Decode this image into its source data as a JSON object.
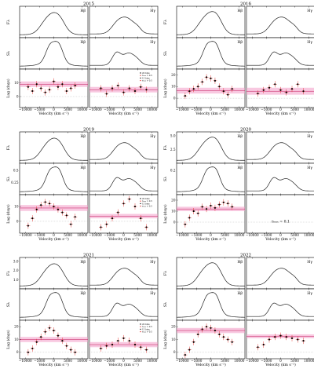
{
  "figure": {
    "panels": [
      {
        "year": "2015",
        "row": 0,
        "col": 0
      },
      {
        "year": "2016",
        "row": 0,
        "col": 1
      },
      {
        "year": "2019",
        "row": 1,
        "col": 0
      },
      {
        "year": "2020",
        "row": 1,
        "col": 1
      },
      {
        "year": "2021",
        "row": 2,
        "col": 0
      },
      {
        "year": "2022",
        "row": 2,
        "col": 1
      }
    ],
    "line_labels": [
      "Hβ",
      "Hγ"
    ],
    "row_labels": {
      "flux": "Fλ",
      "rms": "Sλ",
      "lag": "Lag (days)"
    },
    "xlabel": "Velocity (km s⁻¹)",
    "xticks": [
      "−10000",
      "−5000",
      "0",
      "5000",
      "10000"
    ],
    "legend": [
      "20 bins",
      "rₘₐₓ > 0.5",
      "15 bins",
      "rₘₐₓ > 0.5"
    ],
    "annotation_2020": "rₘₐₓ = 0.1"
  },
  "chart_data": [
    {
      "type": "line",
      "year": "2015",
      "panel": "flux/rms/lag",
      "xlabel": "Velocity (km s⁻¹)",
      "xlim": [
        -12000,
        12000
      ],
      "flux_yticks": [],
      "rms_yticks": [],
      "lag_yticks": [
        0,
        10
      ],
      "lag_ylim": [
        -8,
        20
      ],
      "hbeta_lag_band": [
        7,
        11
      ],
      "hgamma_lag_band": [
        3,
        7
      ],
      "hbeta_lags": {
        "x": [
          -9000,
          -7500,
          -6000,
          -4500,
          -3000,
          -1500,
          0,
          1500,
          3000,
          4500,
          6000,
          7500
        ],
        "y": [
          7,
          4,
          9,
          6,
          3,
          5,
          11,
          7,
          9,
          4,
          6,
          8
        ]
      },
      "hgamma_lags": {
        "x": [
          -8000,
          -6000,
          -4000,
          -2000,
          0,
          2000,
          4000,
          6000,
          8000
        ],
        "y": [
          6,
          2,
          6,
          8,
          3,
          6,
          4,
          7,
          5
        ]
      }
    },
    {
      "type": "line",
      "year": "2016",
      "panel": "flux/rms/lag",
      "xlabel": "Velocity (km s⁻¹)",
      "xlim": [
        -12000,
        12000
      ],
      "flux_yticks": [],
      "rms_yticks": [],
      "lag_yticks": [
        0,
        10,
        20
      ],
      "lag_ylim": [
        -8,
        25
      ],
      "hbeta_lag_band": [
        4,
        9
      ],
      "hgamma_lag_band": [
        3,
        9
      ],
      "hbeta_lags": {
        "x": [
          -9000,
          -7500,
          -6000,
          -4500,
          -3000,
          -1500,
          0,
          1500,
          3000,
          4500,
          6000,
          7500
        ],
        "y": [
          2,
          6,
          8,
          10,
          14,
          18,
          17,
          15,
          10,
          6,
          3,
          8
        ]
      },
      "hgamma_lags": {
        "x": [
          -8000,
          -6000,
          -4000,
          -2000,
          0,
          2000,
          4000,
          6000,
          8000
        ],
        "y": [
          4,
          7,
          9,
          12,
          7,
          5,
          8,
          12,
          6
        ]
      }
    },
    {
      "type": "line",
      "year": "2019",
      "panel": "flux/rms/lag",
      "xlabel": "Velocity (km s⁻¹)",
      "xlim": [
        -12000,
        12000
      ],
      "flux_yticks": [],
      "rms_yticks": [
        0.25,
        0.5
      ],
      "lag_yticks": [
        0,
        10
      ],
      "lag_ylim": [
        -8,
        18
      ],
      "hbeta_lag_band": [
        7,
        11
      ],
      "hgamma_lag_band": [
        2,
        5
      ],
      "hbeta_lags": {
        "x": [
          -9000,
          -7500,
          -6000,
          -4500,
          -3000,
          -1500,
          0,
          1500,
          3000,
          4500,
          6000,
          7500
        ],
        "y": [
          -3,
          2,
          8,
          11,
          13,
          12,
          10,
          8,
          6,
          4,
          -2,
          3
        ]
      },
      "hgamma_lags": {
        "x": [
          -8000,
          -6000,
          -4000,
          -2000,
          0,
          2000,
          4000,
          6000,
          8000
        ],
        "y": [
          -4,
          -2,
          2,
          6,
          12,
          15,
          10,
          2,
          -4
        ]
      }
    },
    {
      "type": "line",
      "year": "2020",
      "panel": "flux/rms/lag",
      "xlabel": "Velocity (km s⁻¹)",
      "xlim": [
        -12000,
        12000
      ],
      "flux_yticks": [
        2.5,
        5.0
      ],
      "rms_yticks": [
        0.2
      ],
      "lag_yticks": [
        0,
        10,
        20
      ],
      "lag_ylim": [
        -10,
        25
      ],
      "hbeta_lag_band": [
        10,
        14
      ],
      "hgamma_lag_band": [],
      "hbeta_lags": {
        "x": [
          -9000,
          -7500,
          -6000,
          -4500,
          -3000,
          -1500,
          0,
          1500,
          3000,
          4500,
          6000,
          7500
        ],
        "y": [
          -2,
          4,
          10,
          8,
          14,
          12,
          15,
          13,
          16,
          18,
          17,
          14
        ]
      },
      "hgamma_lags": {
        "x": [],
        "y": []
      }
    },
    {
      "type": "line",
      "year": "2021",
      "panel": "flux/rms/lag",
      "xlabel": "Velocity (km s⁻¹)",
      "xlim": [
        -12000,
        12000
      ],
      "flux_yticks": [
        1.0,
        2.0,
        3.0
      ],
      "rms_yticks": [],
      "lag_yticks": [
        0,
        10,
        20
      ],
      "lag_ylim": [
        -5,
        25
      ],
      "hbeta_lag_band": [
        8,
        12
      ],
      "hgamma_lag_band": [
        4,
        8
      ],
      "hbeta_lags": {
        "x": [
          -9000,
          -7500,
          -6000,
          -4500,
          -3000,
          -1500,
          0,
          1500,
          3000,
          4500,
          6000,
          7500
        ],
        "y": [
          0,
          3,
          8,
          12,
          16,
          19,
          17,
          13,
          9,
          5,
          2,
          0
        ]
      },
      "hgamma_lags": {
        "x": [
          -8000,
          -6000,
          -4000,
          -2000,
          0,
          2000,
          4000,
          6000,
          8000
        ],
        "y": [
          3,
          5,
          6,
          9,
          11,
          9,
          6,
          4,
          2
        ]
      }
    },
    {
      "type": "line",
      "year": "2022",
      "panel": "flux/rms/lag",
      "xlabel": "Velocity (km s⁻¹)",
      "xlim": [
        -12000,
        12000
      ],
      "flux_yticks": [],
      "rms_yticks": [],
      "lag_yticks": [
        0,
        10,
        20
      ],
      "lag_ylim": [
        -5,
        25
      ],
      "hbeta_lag_band": [
        15,
        19
      ],
      "hgamma_lag_band": [
        11,
        14
      ],
      "hbeta_lags": {
        "x": [
          -9000,
          -7500,
          -6000,
          -4500,
          -3000,
          -1500,
          0,
          1500,
          3000,
          4500,
          6000,
          7500
        ],
        "y": [
          -2,
          2,
          8,
          14,
          18,
          20,
          19,
          17,
          14,
          12,
          10,
          8
        ]
      },
      "hgamma_lags": {
        "x": [
          -8000,
          -6000,
          -4000,
          -2000,
          0,
          2000,
          4000,
          6000,
          8000
        ],
        "y": [
          4,
          6,
          10,
          12,
          13,
          12,
          11,
          10,
          9
        ]
      }
    }
  ]
}
